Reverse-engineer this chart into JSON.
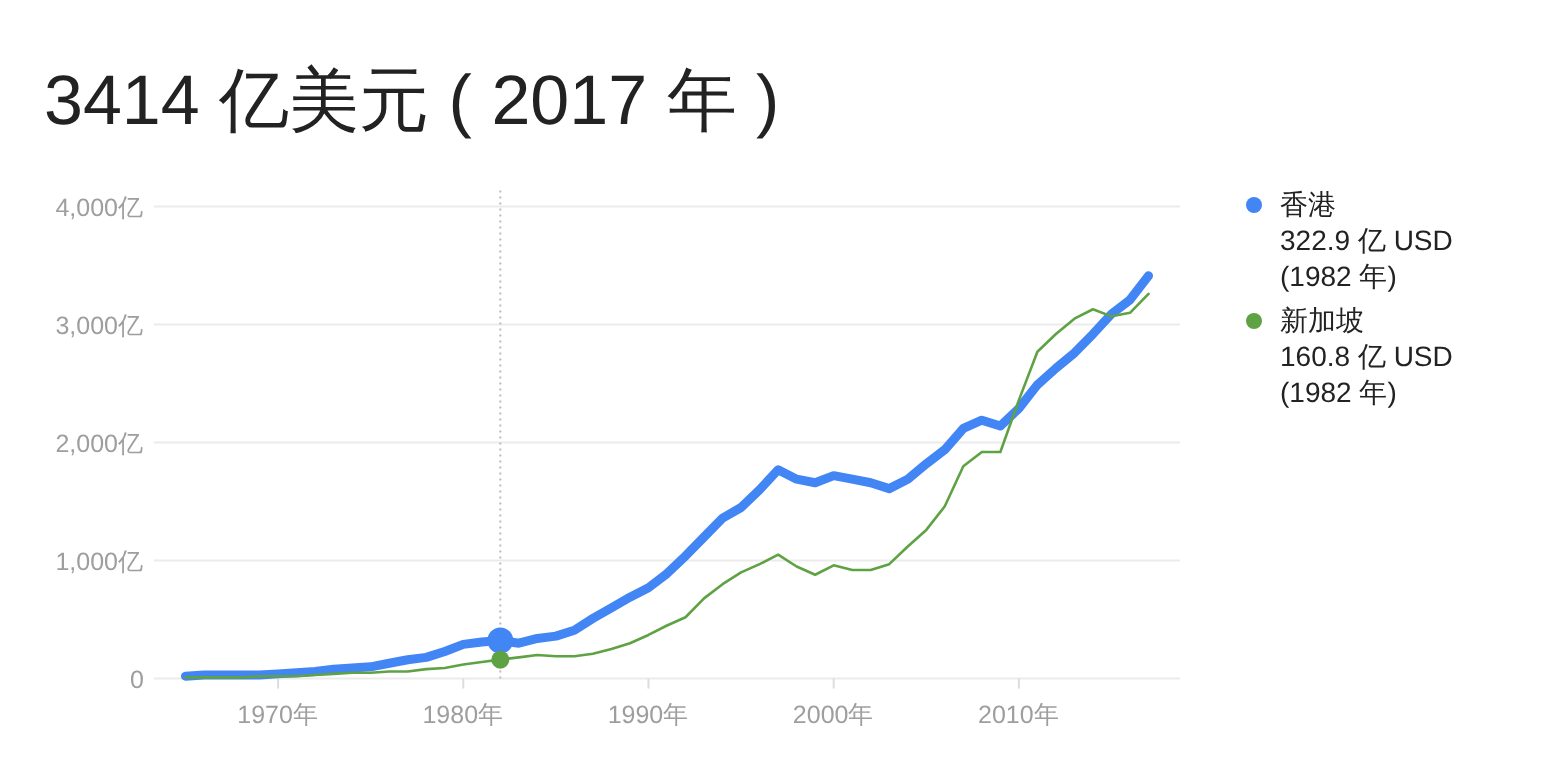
{
  "chart_data": {
    "type": "line",
    "title": "3414 亿美元 ( 2017 年 )",
    "x": [
      1965,
      1966,
      1967,
      1968,
      1969,
      1970,
      1971,
      1972,
      1973,
      1974,
      1975,
      1976,
      1977,
      1978,
      1979,
      1980,
      1981,
      1982,
      1983,
      1984,
      1985,
      1986,
      1987,
      1988,
      1989,
      1990,
      1991,
      1992,
      1993,
      1994,
      1995,
      1996,
      1997,
      1998,
      1999,
      2000,
      2001,
      2002,
      2003,
      2004,
      2005,
      2006,
      2007,
      2008,
      2009,
      2010,
      2011,
      2012,
      2013,
      2014,
      2015,
      2016,
      2017
    ],
    "series": [
      {
        "name": "香港",
        "color": "#4285f4",
        "values": [
          20,
          30,
          30,
          30,
          30,
          40,
          50,
          60,
          80,
          90,
          100,
          130,
          160,
          180,
          230,
          290,
          310,
          322.9,
          300,
          340,
          360,
          410,
          510,
          600,
          690,
          770,
          890,
          1040,
          1200,
          1360,
          1450,
          1600,
          1770,
          1690,
          1660,
          1720,
          1690,
          1660,
          1610,
          1690,
          1820,
          1940,
          2120,
          2190,
          2140,
          2290,
          2490,
          2630,
          2760,
          2920,
          3090,
          3210,
          3414
        ]
      },
      {
        "name": "新加坡",
        "color": "#5ea243",
        "values": [
          10,
          10,
          10,
          10,
          20,
          20,
          20,
          30,
          40,
          50,
          50,
          60,
          60,
          80,
          90,
          120,
          140,
          160.8,
          180,
          200,
          190,
          190,
          210,
          250,
          300,
          370,
          450,
          520,
          680,
          800,
          900,
          970,
          1050,
          950,
          880,
          960,
          920,
          920,
          970,
          1120,
          1260,
          1460,
          1800,
          1920,
          1920,
          2360,
          2770,
          2920,
          3050,
          3130,
          3070,
          3100,
          3260
        ]
      }
    ],
    "xlim": [
      1963.3,
      2018.7
    ],
    "xticks": [
      {
        "value": 1970,
        "label": "1970年"
      },
      {
        "value": 1980,
        "label": "1980年"
      },
      {
        "value": 1990,
        "label": "1990年"
      },
      {
        "value": 2000,
        "label": "2000年"
      },
      {
        "value": 2010,
        "label": "2010年"
      }
    ],
    "ylim": [
      0,
      4000
    ],
    "yticks": [
      0,
      {
        "value": 1000,
        "label": "1,000亿"
      },
      {
        "value": 2000,
        "label": "2,000亿"
      },
      {
        "value": 3000,
        "label": "3,000亿"
      },
      {
        "value": 4000,
        "label": "4,000亿"
      }
    ],
    "grid": "y",
    "legend": "right",
    "marker": "none",
    "line_style": "solid",
    "ref_lines": [
      {
        "axis": "x",
        "value": 1982,
        "line_style": "dotted",
        "color": "#bbbbbb"
      }
    ],
    "annotations": [
      "322.9 亿 USD",
      "(1982 年)",
      "160.8 亿 USD",
      "(1982 年)"
    ]
  }
}
